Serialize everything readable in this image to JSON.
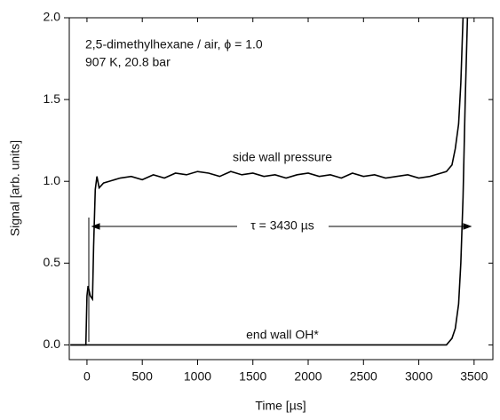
{
  "chart_data": {
    "type": "line",
    "xlabel": "Time [µs]",
    "ylabel": "Signal [arb. units]",
    "annotations": [
      "2,5-dimethylhexane / air, ϕ = 1.0",
      "907 K, 20.8 bar",
      "side wall pressure",
      "τ = 3430 µs",
      "end wall OH*"
    ],
    "x": [
      -150,
      -10,
      0,
      10,
      30,
      50,
      60,
      75,
      90,
      110,
      150,
      200,
      300,
      400,
      500,
      600,
      700,
      800,
      900,
      1000,
      1100,
      1200,
      1300,
      1400,
      1500,
      1600,
      1700,
      1800,
      1900,
      2000,
      2100,
      2200,
      2300,
      2400,
      2500,
      2600,
      2700,
      2800,
      2900,
      3000,
      3100,
      3200,
      3250,
      3300,
      3330,
      3360,
      3380,
      3400,
      3420,
      3440
    ],
    "series": [
      {
        "name": "side wall pressure",
        "color": "#000000",
        "values": [
          0,
          0,
          0.3,
          0.36,
          0.3,
          0.28,
          0.6,
          0.95,
          1.03,
          0.96,
          0.99,
          1.0,
          1.02,
          1.03,
          1.01,
          1.04,
          1.02,
          1.05,
          1.04,
          1.06,
          1.05,
          1.03,
          1.06,
          1.04,
          1.05,
          1.03,
          1.04,
          1.02,
          1.04,
          1.05,
          1.03,
          1.04,
          1.02,
          1.05,
          1.03,
          1.04,
          1.02,
          1.03,
          1.04,
          1.02,
          1.03,
          1.05,
          1.06,
          1.1,
          1.2,
          1.35,
          1.6,
          2.0,
          null,
          null
        ]
      },
      {
        "name": "end wall OH*",
        "color": "#000000",
        "values": [
          0,
          0,
          0,
          0,
          0,
          0,
          0,
          0,
          0,
          0,
          0,
          0,
          0,
          0,
          0,
          0,
          0,
          0,
          0,
          0,
          0,
          0,
          0,
          0,
          0,
          0,
          0,
          0,
          0,
          0,
          0,
          0,
          0,
          0,
          0,
          0,
          0,
          0,
          0,
          0,
          0,
          0,
          0,
          0.04,
          0.1,
          0.25,
          0.5,
          0.9,
          1.5,
          2.0
        ]
      }
    ],
    "xlim": [
      -160,
      3670
    ],
    "ylim": [
      -0.09,
      2.0
    ],
    "xticks": [
      0,
      500,
      1000,
      1500,
      2000,
      2500,
      3000,
      3500
    ],
    "yticks": [
      {
        "value": 0,
        "label": "0.0"
      },
      0.5,
      {
        "value": 1,
        "label": "1.0"
      },
      1.5,
      {
        "value": 2,
        "label": "2.0"
      }
    ]
  }
}
